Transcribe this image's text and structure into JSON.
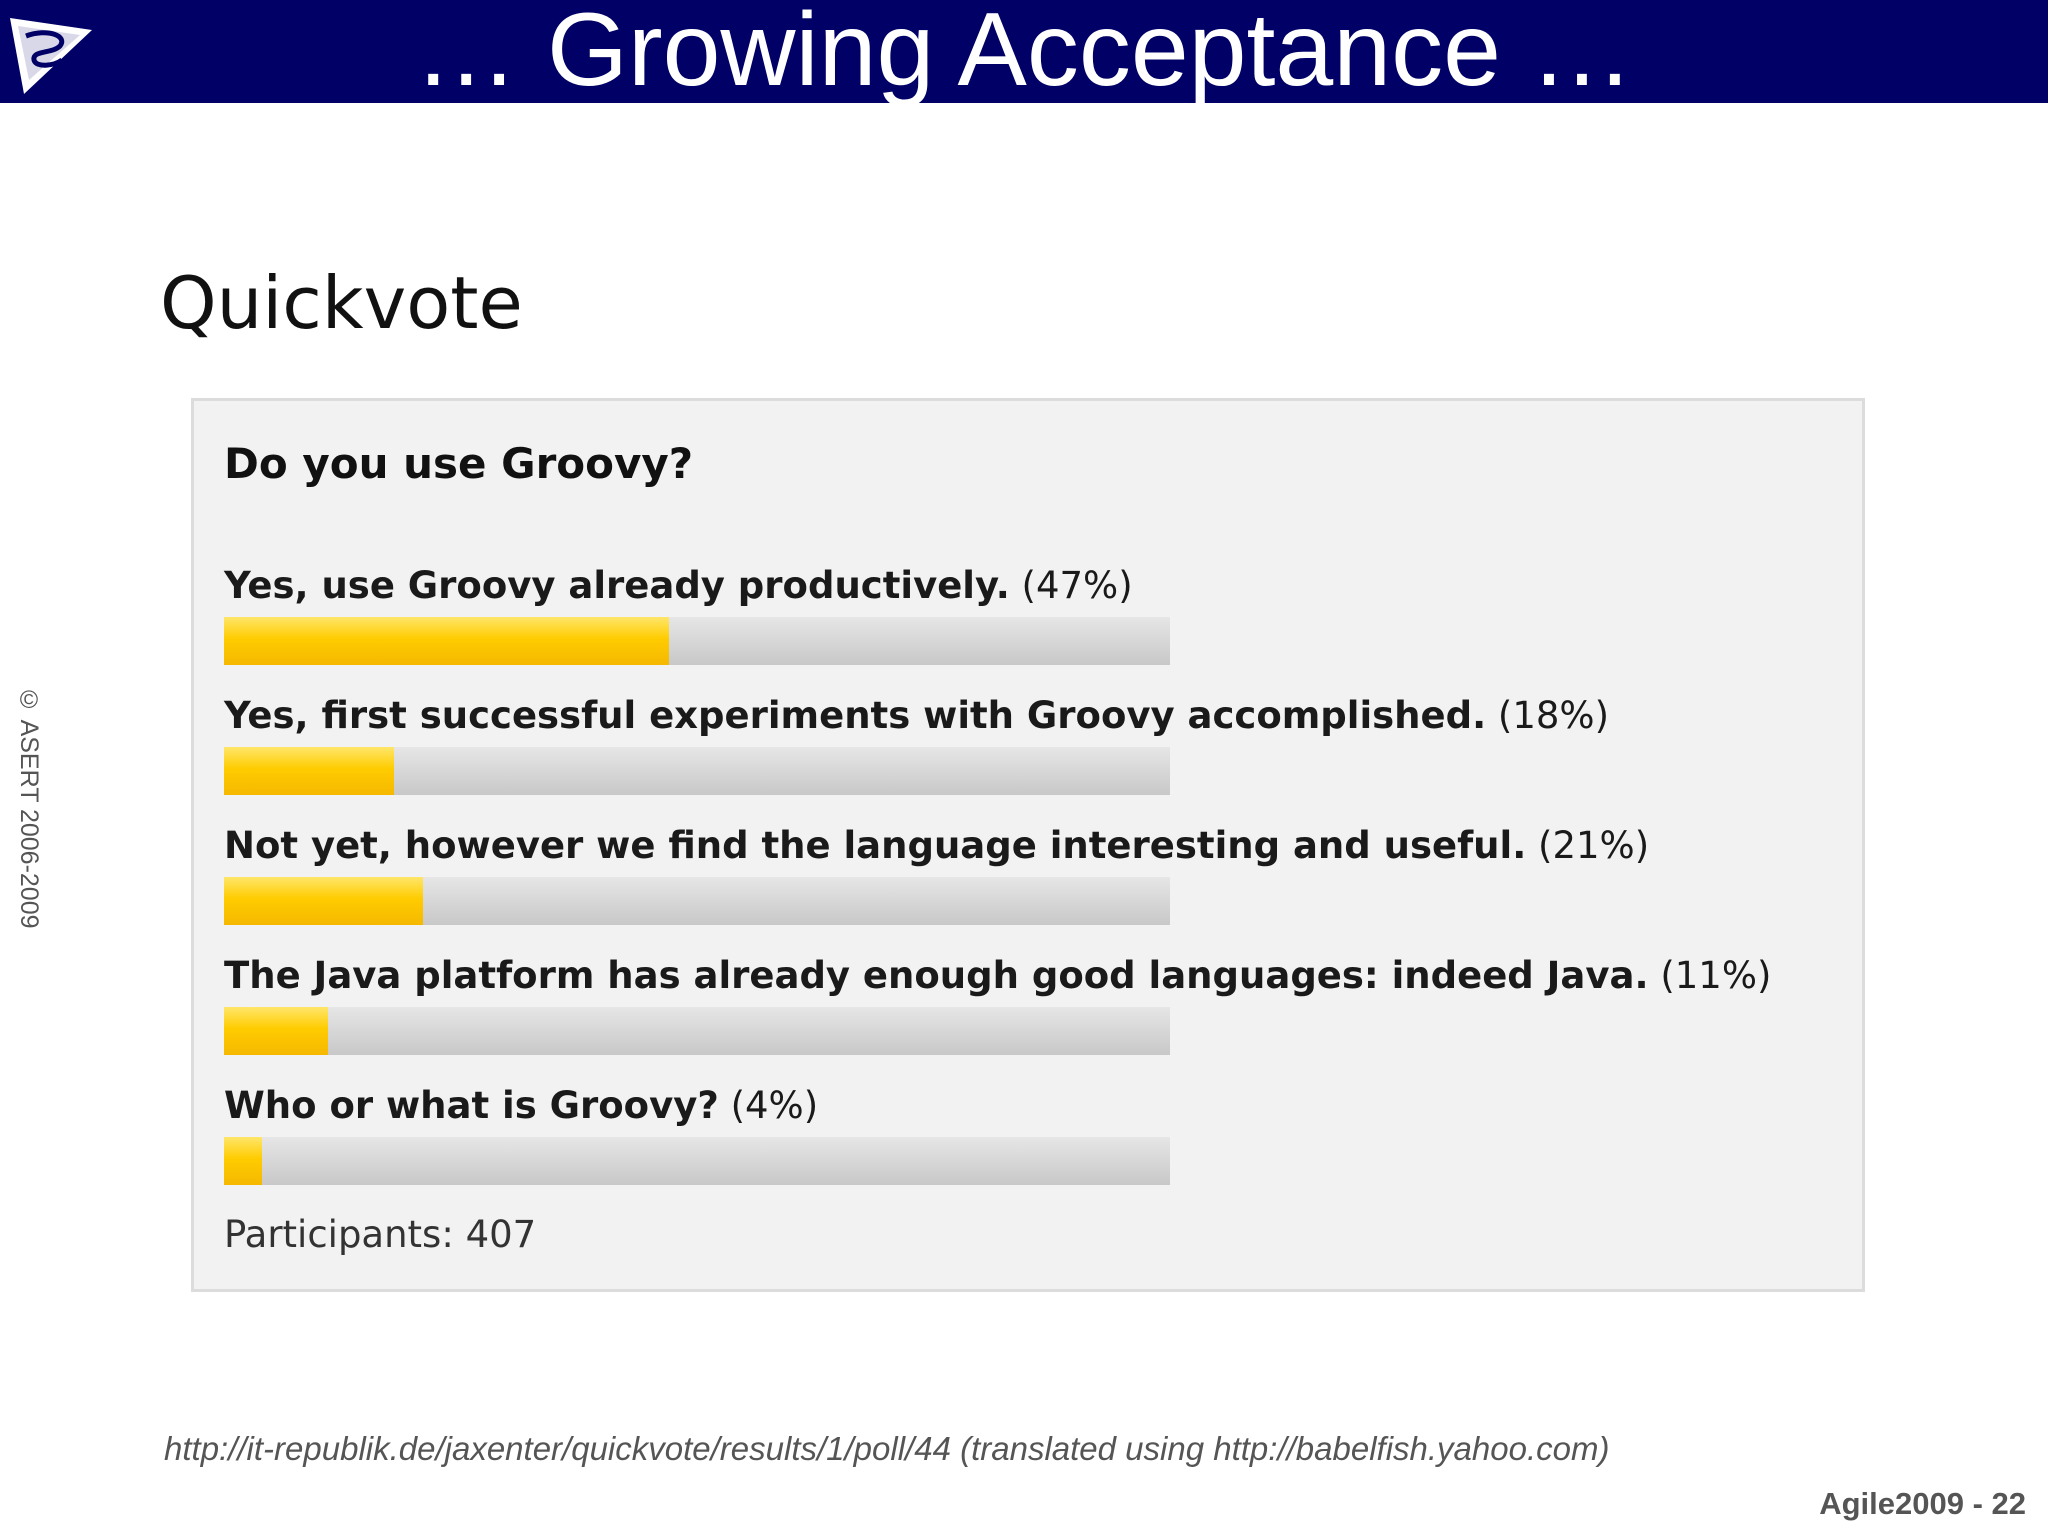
{
  "slide": {
    "title": "… Growing Acceptance …",
    "logo_icon": "asert-triangle-logo-icon",
    "copyright": "© ASERT 2006-2009",
    "footer": "Agile2009 - 22",
    "source": "http://it-republik.de/jaxenter/quickvote/results/1/poll/44 (translated using http://babelfish.yahoo.com)"
  },
  "poll": {
    "heading": "Quickvote",
    "question": "Do you use Groovy?",
    "options": [
      {
        "label": "Yes, use Groovy already productively.",
        "percent_text": "(47%)",
        "value": 47
      },
      {
        "label": "Yes, first successful experiments with Groovy accomplished.",
        "percent_text": "(18%)",
        "value": 18
      },
      {
        "label": "Not yet, however we find the language interesting and useful.",
        "percent_text": "(21%)",
        "value": 21
      },
      {
        "label": "The Java platform has already enough good languages: indeed Java.",
        "percent_text": "(11%)",
        "value": 11
      },
      {
        "label": "Who or what is Groovy?",
        "percent_text": "(4%)",
        "value": 4
      }
    ],
    "participants": "Participants: 407"
  },
  "colors": {
    "header_bg": "#000066",
    "bar_fill": "#ffcc00",
    "bar_track": "#d4d4d4",
    "panel_bg": "#f2f2f2"
  }
}
